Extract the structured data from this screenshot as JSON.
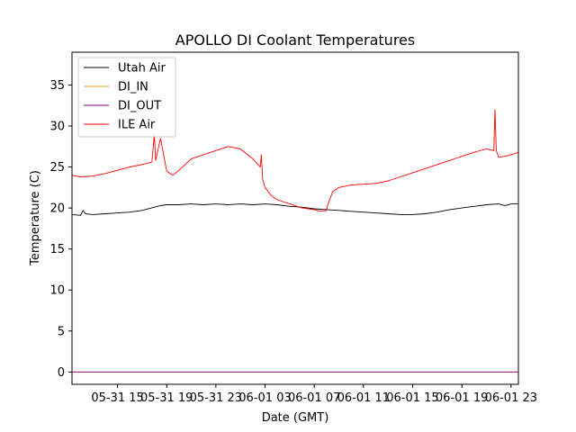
{
  "chart_data": {
    "type": "line",
    "title": "APOLLO DI Coolant Temperatures",
    "xlabel": "Date (GMT)",
    "ylabel": "Temperature (C)",
    "xlim": [
      11.3,
      47.6
    ],
    "ylim": [
      -1.5,
      39
    ],
    "x_unit": "hours since 05-31 00:00 GMT",
    "xticks": [
      {
        "value": 15,
        "label": "05-31 15"
      },
      {
        "value": 19,
        "label": "05-31 19"
      },
      {
        "value": 23,
        "label": "05-31 23"
      },
      {
        "value": 27,
        "label": "06-01 03"
      },
      {
        "value": 31,
        "label": "06-01 07"
      },
      {
        "value": 35,
        "label": "06-01 11"
      },
      {
        "value": 39,
        "label": "06-01 15"
      },
      {
        "value": 43,
        "label": "06-01 19"
      },
      {
        "value": 47,
        "label": "06-01 23"
      }
    ],
    "yticks": [
      {
        "value": 0,
        "label": "0"
      },
      {
        "value": 5,
        "label": "5"
      },
      {
        "value": 10,
        "label": "10"
      },
      {
        "value": 15,
        "label": "15"
      },
      {
        "value": 20,
        "label": "20"
      },
      {
        "value": 25,
        "label": "25"
      },
      {
        "value": 30,
        "label": "30"
      },
      {
        "value": 35,
        "label": "35"
      }
    ],
    "legend_position": "top-left",
    "series": [
      {
        "name": "Utah Air",
        "color": "#000000",
        "x": [
          11.3,
          12.0,
          12.2,
          12.4,
          13.0,
          14.0,
          15.0,
          16.0,
          17.0,
          18.0,
          18.5,
          19.0,
          20.0,
          21.0,
          22.0,
          23.0,
          24.0,
          25.0,
          26.0,
          27.0,
          28.0,
          29.0,
          30.0,
          31.0,
          32.0,
          33.0,
          34.0,
          35.0,
          36.0,
          37.0,
          38.0,
          39.0,
          40.0,
          41.0,
          42.0,
          43.0,
          44.0,
          45.0,
          46.0,
          46.5,
          47.0,
          47.6
        ],
        "y": [
          19.2,
          19.1,
          19.7,
          19.3,
          19.2,
          19.3,
          19.4,
          19.5,
          19.7,
          20.1,
          20.3,
          20.4,
          20.4,
          20.5,
          20.4,
          20.5,
          20.4,
          20.5,
          20.4,
          20.5,
          20.4,
          20.2,
          20.1,
          19.9,
          19.8,
          19.7,
          19.6,
          19.5,
          19.4,
          19.3,
          19.2,
          19.2,
          19.3,
          19.5,
          19.8,
          20.0,
          20.2,
          20.4,
          20.5,
          20.3,
          20.5,
          20.5
        ]
      },
      {
        "name": "DI_IN",
        "color": "#daa520",
        "x": [
          11.3,
          47.6
        ],
        "y": [
          0,
          0
        ]
      },
      {
        "name": "DI_OUT",
        "color": "#800080",
        "x": [
          11.3,
          47.6
        ],
        "y": [
          0,
          0
        ]
      },
      {
        "name": "ILE Air",
        "color": "#ff0000",
        "x": [
          11.3,
          12.0,
          13.0,
          14.0,
          15.0,
          16.0,
          17.0,
          17.8,
          18.0,
          18.1,
          18.5,
          19.0,
          19.5,
          20.0,
          21.0,
          22.0,
          23.0,
          24.0,
          25.0,
          26.0,
          26.6,
          26.7,
          26.8,
          27.0,
          27.5,
          28.0,
          29.0,
          30.0,
          31.0,
          31.5,
          32.0,
          32.1,
          32.5,
          33.0,
          34.0,
          35.0,
          36.0,
          37.0,
          38.0,
          39.0,
          40.0,
          41.0,
          42.0,
          43.0,
          44.0,
          45.0,
          45.6,
          45.7,
          45.8,
          46.0,
          46.5,
          47.0,
          47.6
        ],
        "y": [
          24.0,
          23.8,
          23.9,
          24.2,
          24.6,
          25.0,
          25.3,
          25.6,
          29.0,
          25.8,
          28.5,
          24.5,
          24.0,
          24.6,
          26.0,
          26.5,
          27.0,
          27.5,
          27.2,
          26.0,
          25.0,
          26.5,
          23.5,
          22.5,
          21.5,
          21.0,
          20.5,
          20.0,
          19.8,
          19.6,
          19.7,
          20.4,
          22.0,
          22.5,
          22.8,
          22.9,
          23.0,
          23.3,
          23.8,
          24.3,
          24.8,
          25.3,
          25.8,
          26.3,
          26.8,
          27.2,
          27.0,
          32.0,
          27.0,
          26.2,
          26.3,
          26.5,
          26.8
        ]
      }
    ]
  }
}
